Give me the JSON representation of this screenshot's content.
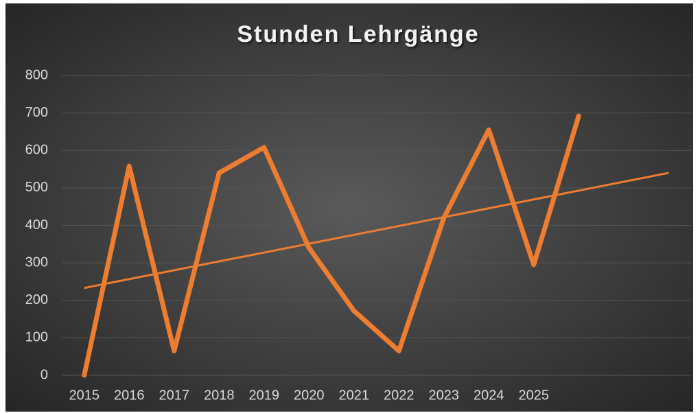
{
  "chart_data": {
    "type": "line",
    "title": "Stunden Lehrgänge",
    "categories": [
      "2015",
      "2016",
      "2017",
      "2018",
      "2019",
      "2020",
      "2021",
      "2022",
      "2023",
      "2024",
      "2025",
      null,
      null,
      null
    ],
    "series": [
      {
        "color": "#ed7d31",
        "values": [
          0,
          558,
          65,
          540,
          608,
          340,
          172,
          65,
          420,
          655,
          295,
          692,
          null,
          null
        ]
      }
    ],
    "trendline": {
      "color": "#ed7d31",
      "values": [
        233,
        540
      ]
    },
    "ylim": [
      0,
      800
    ],
    "yticks": [
      0,
      100,
      200,
      300,
      400,
      500,
      600,
      700,
      800
    ],
    "grid": true
  }
}
